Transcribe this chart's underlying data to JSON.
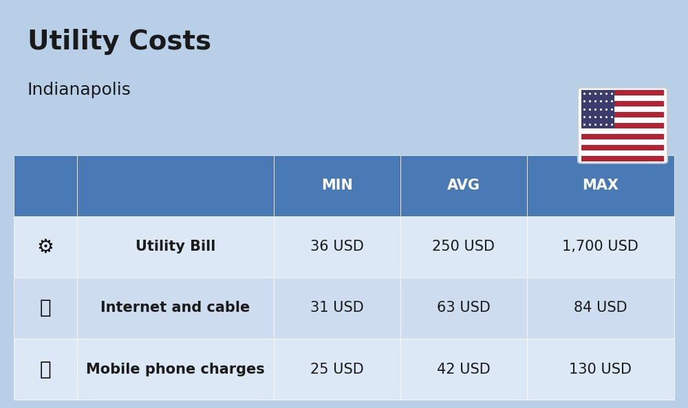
{
  "title": "Utility Costs",
  "subtitle": "Indianapolis",
  "background_color": "#b8cfe8",
  "header_color": "#4a7ab5",
  "header_text_color": "#ffffff",
  "row_color_1": "#dce8f5",
  "row_color_2": "#cdddef",
  "table_border_color": "#ffffff",
  "text_color": "#1a1a1a",
  "columns": [
    "",
    "",
    "MIN",
    "AVG",
    "MAX"
  ],
  "rows": [
    {
      "label": "Utility Bill",
      "min": "36 USD",
      "avg": "250 USD",
      "max": "1,700 USD",
      "icon": "utility"
    },
    {
      "label": "Internet and cable",
      "min": "31 USD",
      "avg": "63 USD",
      "max": "84 USD",
      "icon": "internet"
    },
    {
      "label": "Mobile phone charges",
      "min": "25 USD",
      "avg": "42 USD",
      "max": "130 USD",
      "icon": "mobile"
    }
  ],
  "title_fontsize": 28,
  "subtitle_fontsize": 18,
  "header_fontsize": 15,
  "cell_fontsize": 15,
  "label_fontsize": 15
}
